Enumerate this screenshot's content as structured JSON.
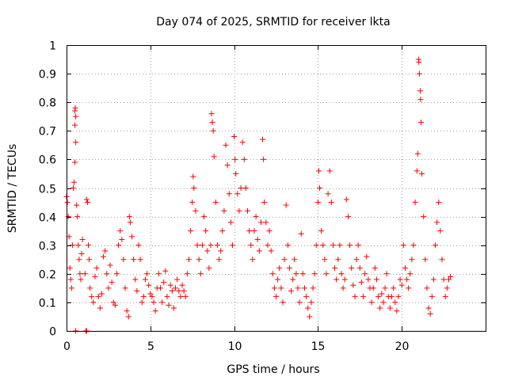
{
  "chart_data": {
    "type": "scatter",
    "title": "Day 074 of 2025, SRMTID for receiver lkta",
    "xlabel": "GPS time / hours",
    "ylabel": "SRMTID / TECUs",
    "xlim": [
      0,
      25
    ],
    "ylim": [
      0,
      1
    ],
    "x_ticks": [
      "0",
      "5",
      "10",
      "15",
      "20"
    ],
    "x_tick_values": [
      0,
      5,
      10,
      15,
      20
    ],
    "y_ticks": [
      "0",
      "0.1",
      "0.2",
      "0.3",
      "0.4",
      "0.5",
      "0.6",
      "0.7",
      "0.8",
      "0.9",
      "1"
    ],
    "y_tick_values": [
      0,
      0.1,
      0.2,
      0.3,
      0.4,
      0.5,
      0.6,
      0.7,
      0.8,
      0.9,
      1
    ],
    "grid": true,
    "marker": "+",
    "color": "#ff0000",
    "series": [
      {
        "name": "SRMTID",
        "points": [
          [
            0.0,
            0.47
          ],
          [
            0.05,
            0.45
          ],
          [
            0.1,
            0.4
          ],
          [
            0.15,
            0.33
          ],
          [
            0.2,
            0.22
          ],
          [
            0.25,
            0.18
          ],
          [
            0.3,
            0.15
          ],
          [
            0.35,
            0.3
          ],
          [
            0.4,
            0.5
          ],
          [
            0.45,
            0.52
          ],
          [
            0.5,
            0.77
          ],
          [
            0.52,
            0.78
          ],
          [
            0.55,
            0.75
          ],
          [
            0.5,
            0.72
          ],
          [
            0.55,
            0.66
          ],
          [
            0.5,
            0.59
          ],
          [
            0.6,
            0.44
          ],
          [
            0.65,
            0.4
          ],
          [
            0.7,
            0.3
          ],
          [
            0.75,
            0.25
          ],
          [
            0.8,
            0.2
          ],
          [
            0.85,
            0.18
          ],
          [
            0.9,
            0.27
          ],
          [
            0.95,
            0.32
          ],
          [
            0.55,
            0.0
          ],
          [
            1.15,
            0.0
          ],
          [
            1.2,
            0.0
          ],
          [
            1.1,
            0.2
          ],
          [
            1.2,
            0.46
          ],
          [
            1.25,
            0.45
          ],
          [
            1.3,
            0.3
          ],
          [
            1.35,
            0.25
          ],
          [
            1.4,
            0.15
          ],
          [
            1.5,
            0.12
          ],
          [
            1.6,
            0.1
          ],
          [
            1.7,
            0.19
          ],
          [
            1.8,
            0.22
          ],
          [
            1.9,
            0.12
          ],
          [
            2.0,
            0.08
          ],
          [
            2.1,
            0.13
          ],
          [
            2.2,
            0.26
          ],
          [
            2.3,
            0.28
          ],
          [
            2.4,
            0.2
          ],
          [
            2.5,
            0.15
          ],
          [
            2.6,
            0.23
          ],
          [
            2.7,
            0.17
          ],
          [
            2.8,
            0.1
          ],
          [
            2.9,
            0.09
          ],
          [
            3.0,
            0.2
          ],
          [
            3.1,
            0.3
          ],
          [
            3.2,
            0.35
          ],
          [
            3.3,
            0.32
          ],
          [
            3.4,
            0.25
          ],
          [
            3.5,
            0.15
          ],
          [
            3.6,
            0.07
          ],
          [
            3.7,
            0.05
          ],
          [
            3.75,
            0.4
          ],
          [
            3.8,
            0.38
          ],
          [
            3.9,
            0.33
          ],
          [
            4.0,
            0.25
          ],
          [
            4.1,
            0.18
          ],
          [
            4.2,
            0.14
          ],
          [
            4.3,
            0.3
          ],
          [
            4.4,
            0.25
          ],
          [
            4.5,
            0.1
          ],
          [
            4.6,
            0.12
          ],
          [
            4.7,
            0.18
          ],
          [
            4.8,
            0.2
          ],
          [
            4.9,
            0.16
          ],
          [
            5.0,
            0.13
          ],
          [
            5.1,
            0.12
          ],
          [
            5.2,
            0.1
          ],
          [
            5.3,
            0.07
          ],
          [
            5.4,
            0.15
          ],
          [
            5.5,
            0.2
          ],
          [
            5.6,
            0.15
          ],
          [
            5.7,
            0.1
          ],
          [
            5.8,
            0.17
          ],
          [
            5.9,
            0.21
          ],
          [
            6.0,
            0.12
          ],
          [
            6.1,
            0.09
          ],
          [
            6.2,
            0.16
          ],
          [
            6.3,
            0.14
          ],
          [
            6.4,
            0.08
          ],
          [
            6.5,
            0.15
          ],
          [
            6.6,
            0.18
          ],
          [
            6.7,
            0.14
          ],
          [
            6.8,
            0.12
          ],
          [
            6.9,
            0.16
          ],
          [
            7.0,
            0.14
          ],
          [
            7.1,
            0.12
          ],
          [
            7.2,
            0.2
          ],
          [
            7.3,
            0.25
          ],
          [
            7.4,
            0.35
          ],
          [
            7.5,
            0.45
          ],
          [
            7.55,
            0.54
          ],
          [
            7.6,
            0.5
          ],
          [
            7.7,
            0.42
          ],
          [
            7.8,
            0.3
          ],
          [
            7.9,
            0.25
          ],
          [
            8.0,
            0.2
          ],
          [
            8.1,
            0.3
          ],
          [
            8.2,
            0.4
          ],
          [
            8.3,
            0.35
          ],
          [
            8.4,
            0.28
          ],
          [
            8.5,
            0.22
          ],
          [
            8.6,
            0.3
          ],
          [
            8.65,
            0.76
          ],
          [
            8.7,
            0.73
          ],
          [
            8.75,
            0.7
          ],
          [
            8.8,
            0.61
          ],
          [
            8.9,
            0.45
          ],
          [
            9.0,
            0.3
          ],
          [
            9.1,
            0.25
          ],
          [
            9.2,
            0.28
          ],
          [
            9.3,
            0.35
          ],
          [
            9.4,
            0.42
          ],
          [
            9.5,
            0.65
          ],
          [
            9.6,
            0.58
          ],
          [
            9.7,
            0.48
          ],
          [
            9.8,
            0.38
          ],
          [
            9.9,
            0.3
          ],
          [
            10.0,
            0.68
          ],
          [
            10.05,
            0.6
          ],
          [
            10.1,
            0.55
          ],
          [
            10.2,
            0.48
          ],
          [
            10.3,
            0.42
          ],
          [
            10.4,
            0.5
          ],
          [
            10.5,
            0.66
          ],
          [
            10.6,
            0.6
          ],
          [
            10.7,
            0.5
          ],
          [
            10.8,
            0.42
          ],
          [
            10.9,
            0.35
          ],
          [
            11.0,
            0.3
          ],
          [
            11.1,
            0.25
          ],
          [
            11.2,
            0.35
          ],
          [
            11.3,
            0.4
          ],
          [
            11.4,
            0.32
          ],
          [
            11.5,
            0.28
          ],
          [
            11.6,
            0.38
          ],
          [
            11.7,
            0.67
          ],
          [
            11.75,
            0.6
          ],
          [
            11.8,
            0.45
          ],
          [
            11.9,
            0.38
          ],
          [
            12.0,
            0.3
          ],
          [
            12.1,
            0.35
          ],
          [
            12.2,
            0.28
          ],
          [
            12.3,
            0.2
          ],
          [
            12.4,
            0.15
          ],
          [
            12.5,
            0.12
          ],
          [
            12.6,
            0.18
          ],
          [
            12.7,
            0.22
          ],
          [
            12.8,
            0.15
          ],
          [
            12.9,
            0.1
          ],
          [
            13.0,
            0.25
          ],
          [
            13.1,
            0.44
          ],
          [
            13.2,
            0.3
          ],
          [
            13.3,
            0.22
          ],
          [
            13.4,
            0.14
          ],
          [
            13.5,
            0.18
          ],
          [
            13.6,
            0.25
          ],
          [
            13.7,
            0.2
          ],
          [
            13.8,
            0.15
          ],
          [
            13.9,
            0.1
          ],
          [
            14.0,
            0.34
          ],
          [
            14.1,
            0.2
          ],
          [
            14.2,
            0.15
          ],
          [
            14.3,
            0.12
          ],
          [
            14.4,
            0.08
          ],
          [
            14.5,
            0.05
          ],
          [
            14.6,
            0.1
          ],
          [
            14.7,
            0.15
          ],
          [
            14.8,
            0.2
          ],
          [
            14.9,
            0.3
          ],
          [
            15.0,
            0.45
          ],
          [
            15.05,
            0.56
          ],
          [
            15.1,
            0.5
          ],
          [
            15.2,
            0.35
          ],
          [
            15.3,
            0.3
          ],
          [
            15.4,
            0.25
          ],
          [
            15.5,
            0.2
          ],
          [
            15.6,
            0.48
          ],
          [
            15.7,
            0.56
          ],
          [
            15.8,
            0.45
          ],
          [
            15.9,
            0.3
          ],
          [
            16.0,
            0.22
          ],
          [
            16.1,
            0.18
          ],
          [
            16.2,
            0.25
          ],
          [
            16.3,
            0.3
          ],
          [
            16.4,
            0.2
          ],
          [
            16.5,
            0.15
          ],
          [
            16.6,
            0.18
          ],
          [
            16.7,
            0.46
          ],
          [
            16.8,
            0.4
          ],
          [
            16.9,
            0.3
          ],
          [
            17.0,
            0.22
          ],
          [
            17.1,
            0.16
          ],
          [
            17.2,
            0.12
          ],
          [
            17.3,
            0.25
          ],
          [
            17.4,
            0.3
          ],
          [
            17.5,
            0.22
          ],
          [
            17.6,
            0.17
          ],
          [
            17.7,
            0.12
          ],
          [
            17.8,
            0.2
          ],
          [
            17.9,
            0.26
          ],
          [
            18.0,
            0.18
          ],
          [
            18.1,
            0.15
          ],
          [
            18.2,
            0.1
          ],
          [
            18.3,
            0.15
          ],
          [
            18.4,
            0.22
          ],
          [
            18.5,
            0.18
          ],
          [
            18.6,
            0.12
          ],
          [
            18.7,
            0.08
          ],
          [
            18.8,
            0.13
          ],
          [
            18.9,
            0.1
          ],
          [
            19.0,
            0.15
          ],
          [
            19.1,
            0.2
          ],
          [
            19.2,
            0.12
          ],
          [
            19.3,
            0.08
          ],
          [
            19.4,
            0.12
          ],
          [
            19.5,
            0.15
          ],
          [
            19.6,
            0.1
          ],
          [
            19.7,
            0.07
          ],
          [
            19.8,
            0.12
          ],
          [
            19.9,
            0.18
          ],
          [
            20.0,
            0.16
          ],
          [
            20.1,
            0.3
          ],
          [
            20.2,
            0.22
          ],
          [
            20.3,
            0.18
          ],
          [
            20.4,
            0.15
          ],
          [
            20.5,
            0.2
          ],
          [
            20.6,
            0.25
          ],
          [
            20.7,
            0.3
          ],
          [
            20.8,
            0.45
          ],
          [
            20.9,
            0.56
          ],
          [
            20.95,
            0.62
          ],
          [
            21.0,
            0.95
          ],
          [
            21.02,
            0.94
          ],
          [
            21.05,
            0.9
          ],
          [
            21.1,
            0.84
          ],
          [
            21.12,
            0.81
          ],
          [
            21.15,
            0.73
          ],
          [
            21.2,
            0.55
          ],
          [
            21.3,
            0.4
          ],
          [
            21.4,
            0.25
          ],
          [
            21.5,
            0.15
          ],
          [
            21.6,
            0.08
          ],
          [
            21.7,
            0.06
          ],
          [
            21.8,
            0.12
          ],
          [
            21.9,
            0.18
          ],
          [
            22.0,
            0.3
          ],
          [
            22.1,
            0.38
          ],
          [
            22.2,
            0.45
          ],
          [
            22.3,
            0.35
          ],
          [
            22.4,
            0.25
          ],
          [
            22.5,
            0.18
          ],
          [
            22.6,
            0.12
          ],
          [
            22.7,
            0.15
          ],
          [
            22.8,
            0.18
          ],
          [
            22.9,
            0.19
          ]
        ]
      }
    ]
  }
}
